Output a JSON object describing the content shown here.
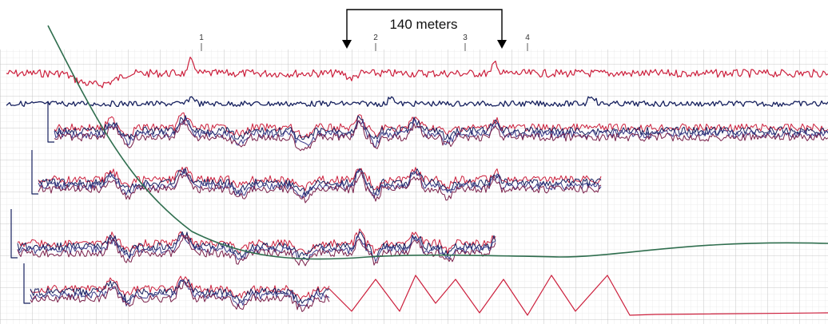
{
  "chart_data": {
    "type": "line",
    "title": "",
    "annotation": {
      "label": "140 meters"
    },
    "markers": [
      "1",
      "2",
      "3",
      "4"
    ],
    "colors": {
      "grid": "#c9c9c9",
      "red": "#cc1f3c",
      "navy": "#16205e",
      "green": "#2f6e4e",
      "paper": "#ffffff"
    }
  }
}
